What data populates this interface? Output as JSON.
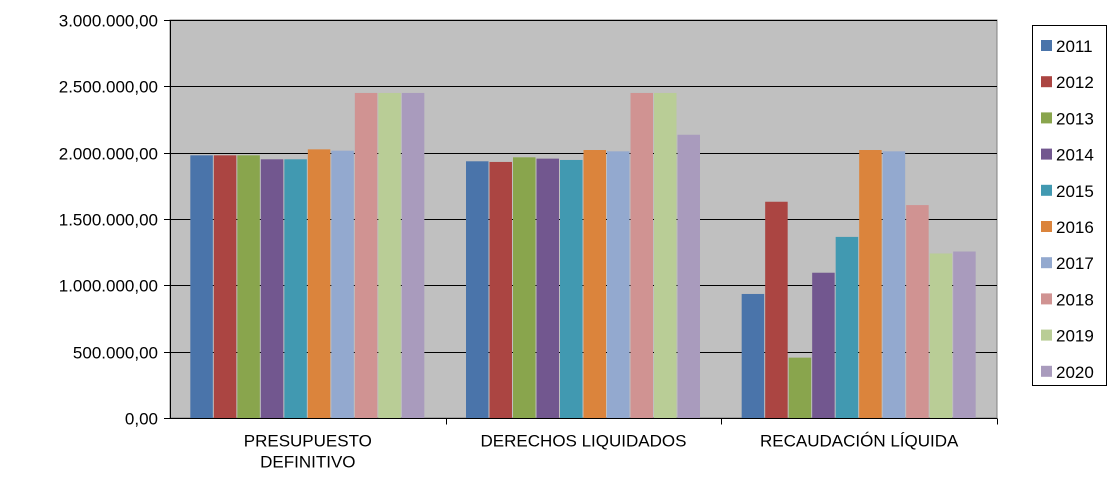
{
  "chart_data": {
    "type": "bar",
    "categories": [
      [
        "PRESUPUESTO",
        "DEFINITIVO"
      ],
      [
        "DERECHOS LIQUIDADOS"
      ],
      [
        "RECAUDACIÓN LÍQUIDA"
      ]
    ],
    "ylim": [
      0,
      3000000
    ],
    "yticks": [
      0,
      500000,
      1000000,
      1500000,
      2000000,
      2500000,
      3000000
    ],
    "ytick_labels": [
      "0,00",
      "500.000,00",
      "1.000.000,00",
      "1.500.000,00",
      "2.000.000,00",
      "2.500.000,00",
      "3.000.000,00"
    ],
    "grid": true,
    "plot_background": "#c0c0c0",
    "legend_position": "right",
    "series": [
      {
        "name": "2011",
        "color": "#4a74aa",
        "values": [
          1980000,
          1935000,
          935000
        ]
      },
      {
        "name": "2012",
        "color": "#ab4542",
        "values": [
          1980000,
          1930000,
          1630000
        ]
      },
      {
        "name": "2013",
        "color": "#89a54d",
        "values": [
          1980000,
          1965000,
          455000
        ]
      },
      {
        "name": "2014",
        "color": "#72578f",
        "values": [
          1950000,
          1955000,
          1095000
        ]
      },
      {
        "name": "2015",
        "color": "#4199b1",
        "values": [
          1950000,
          1945000,
          1365000
        ]
      },
      {
        "name": "2016",
        "color": "#db843c",
        "values": [
          2025000,
          2020000,
          2020000
        ]
      },
      {
        "name": "2017",
        "color": "#93a9cf",
        "values": [
          2015000,
          2010000,
          2010000
        ]
      },
      {
        "name": "2018",
        "color": "#d09392",
        "values": [
          2450000,
          2450000,
          1605000
        ]
      },
      {
        "name": "2019",
        "color": "#b9cd96",
        "values": [
          2450000,
          2450000,
          1240000
        ]
      },
      {
        "name": "2020",
        "color": "#a99bbd",
        "values": [
          2450000,
          2135000,
          1255000
        ]
      }
    ]
  }
}
